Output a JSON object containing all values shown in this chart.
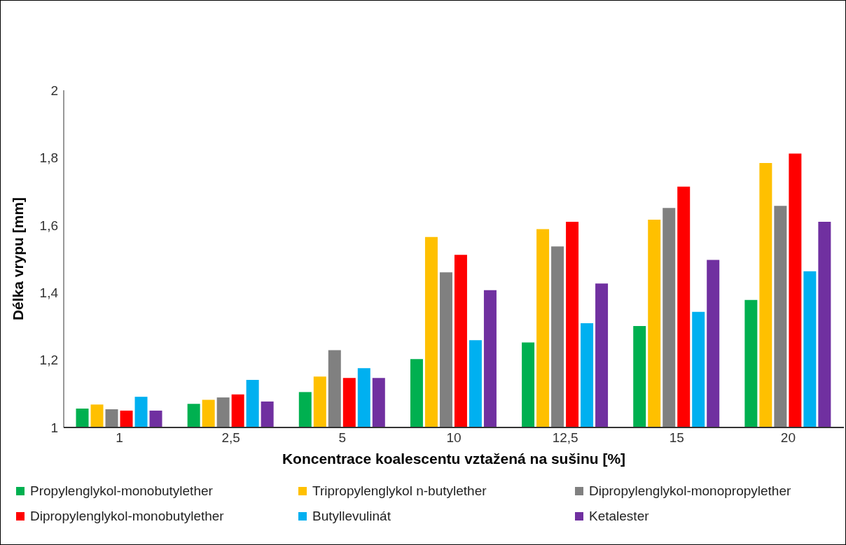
{
  "chart_data": {
    "type": "bar",
    "xlabel": "Koncentrace koalescentu vztažená na sušinu [%]",
    "ylabel": "Délka vrypu [mm]",
    "categories": [
      "1",
      "2,5",
      "5",
      "10",
      "12,5",
      "15",
      "20"
    ],
    "series": [
      {
        "name": "Propylenglykol-monobutylether",
        "color": "#00b050",
        "values": [
          1.056,
          1.07,
          1.105,
          1.203,
          1.252,
          1.301,
          1.378
        ]
      },
      {
        "name": "Tripropylenglykol n-butylether",
        "color": "#ffc000",
        "values": [
          1.068,
          1.082,
          1.151,
          1.565,
          1.588,
          1.616,
          1.784
        ]
      },
      {
        "name": "Dipropylenglykol-monopropylether",
        "color": "#808080",
        "values": [
          1.054,
          1.089,
          1.229,
          1.46,
          1.537,
          1.651,
          1.657
        ]
      },
      {
        "name": "Dipropylenglykol-monobutylether",
        "color": "#ff0000",
        "values": [
          1.05,
          1.098,
          1.147,
          1.512,
          1.61,
          1.714,
          1.812
        ]
      },
      {
        "name": "Butyllevulinát",
        "color": "#00b0f0",
        "values": [
          1.091,
          1.141,
          1.176,
          1.259,
          1.309,
          1.343,
          1.463
        ]
      },
      {
        "name": "Ketalester",
        "color": "#7030a0",
        "values": [
          1.05,
          1.077,
          1.147,
          1.407,
          1.427,
          1.497,
          1.61
        ]
      }
    ],
    "ylim": [
      1,
      2
    ],
    "yticks": [
      1,
      {
        "value": 1.2,
        "label": "1,2"
      },
      {
        "value": 1.4,
        "label": "1,4"
      },
      {
        "value": 1.6,
        "label": "1,6"
      },
      {
        "value": 1.8,
        "label": "1,8"
      },
      2
    ],
    "grid": false,
    "legend": "bottom"
  }
}
